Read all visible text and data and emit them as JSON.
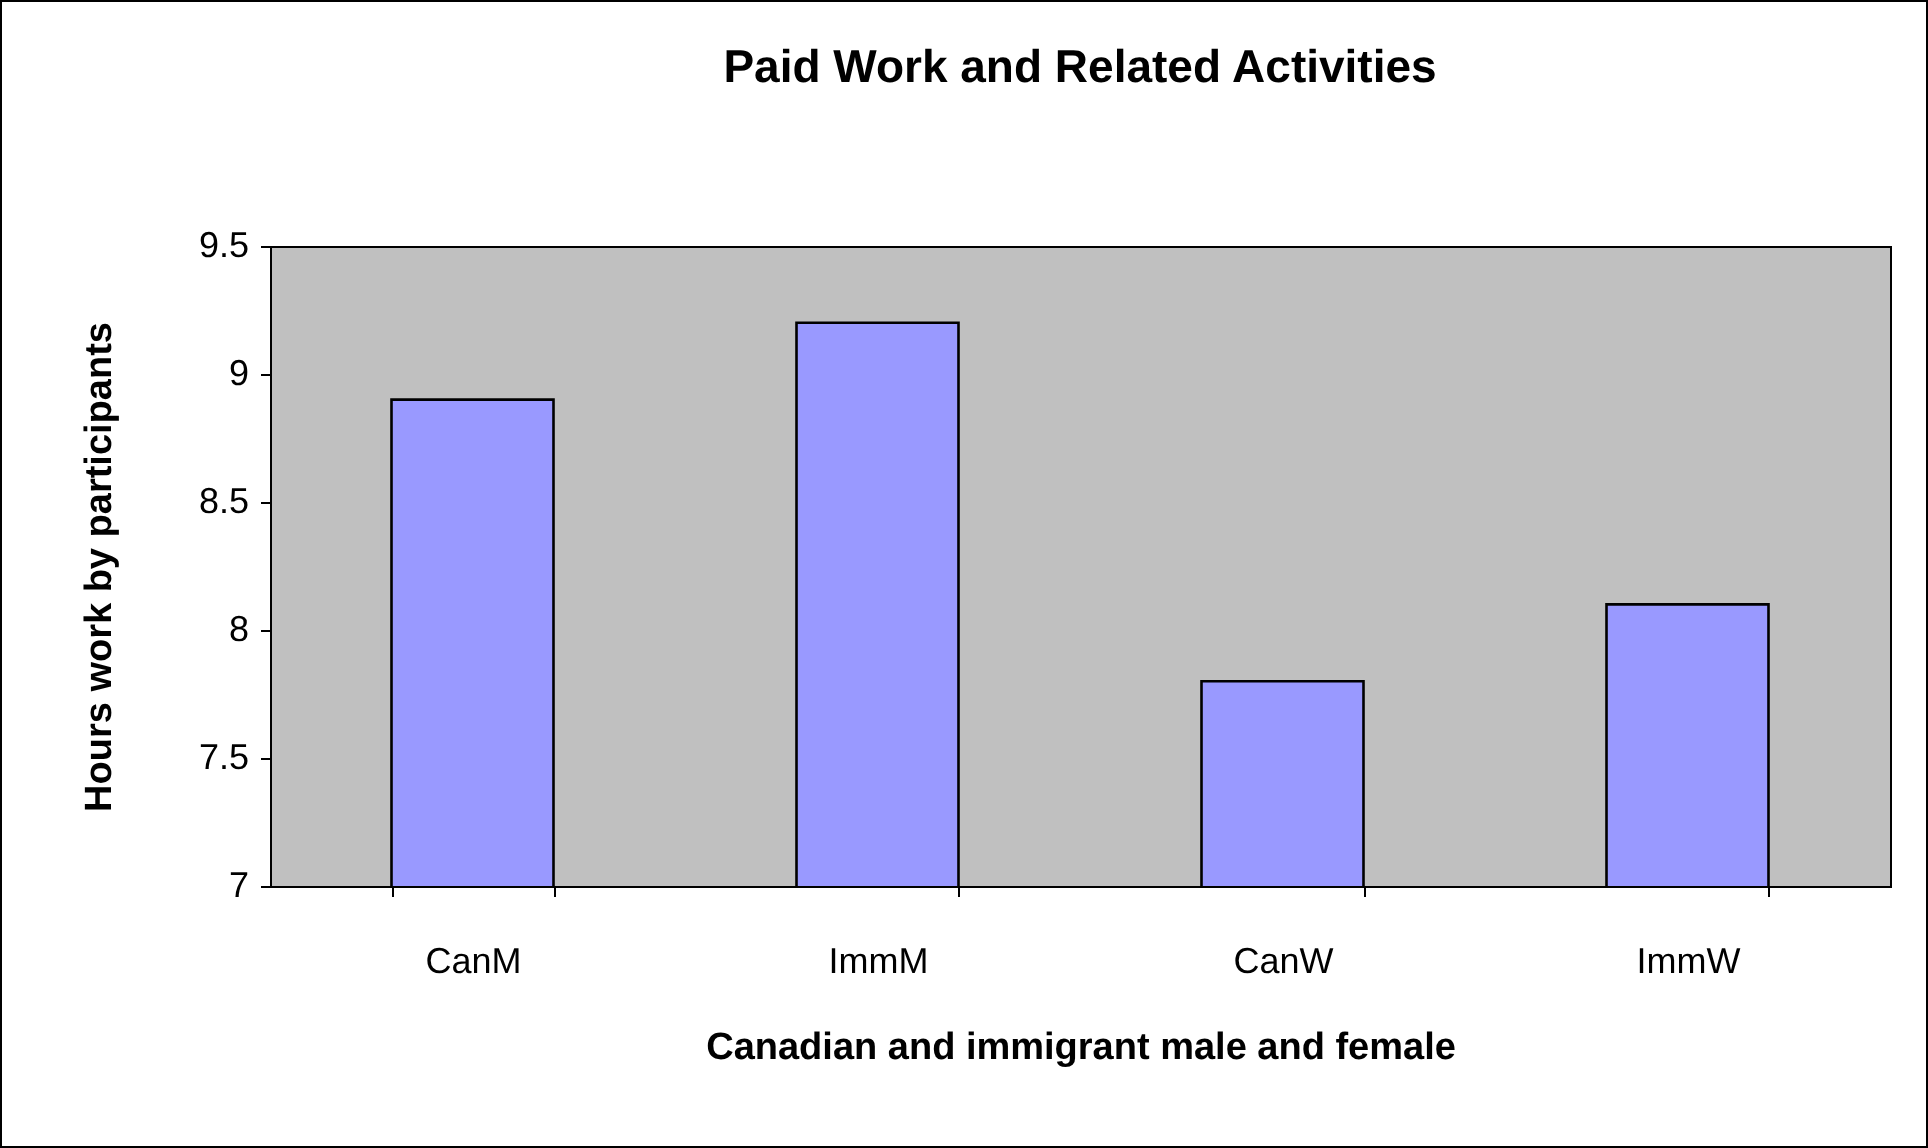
{
  "chart_data": {
    "type": "bar",
    "title": "Paid Work and Related Activities",
    "xlabel": "Canadian and immigrant male and female",
    "ylabel": "Hours work by participants",
    "categories": [
      "CanM",
      "ImmM",
      "CanW",
      "ImmW"
    ],
    "values": [
      8.9,
      9.2,
      7.8,
      8.1
    ],
    "color": "#9999ff",
    "ylim": [
      7,
      9.5
    ],
    "yticks": [
      7,
      7.5,
      8,
      8.5,
      9,
      9.5
    ],
    "grid": false
  }
}
